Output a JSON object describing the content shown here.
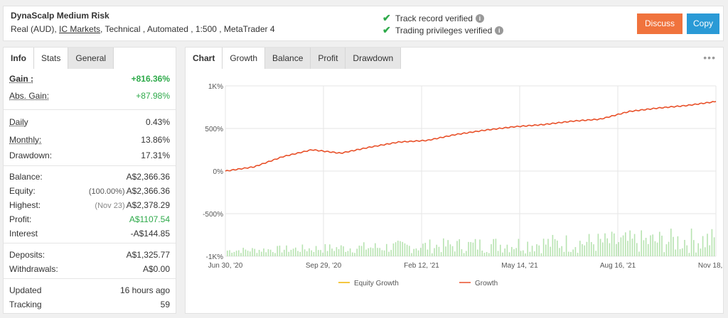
{
  "header": {
    "system_name": "DynaScalp Medium Risk",
    "info_prefix": "Real (AUD),",
    "broker": "IC Markets",
    "info_suffix": ", Technical , Automated , 1:500 , MetaTrader 4",
    "track_record": "Track record verified",
    "trading_privileges": "Trading privileges verified",
    "discuss_label": "Discuss",
    "copy_label": "Copy",
    "colors": {
      "discuss": "#f0733d",
      "copy": "#2a9ad6",
      "verified": "#2eaa4a"
    }
  },
  "left_panel": {
    "tabs": [
      "Info",
      "Stats",
      "General"
    ],
    "active_tab": "Stats",
    "gain_label": "Gain :",
    "gain_value": "+816.36%",
    "abs_gain_label": "Abs. Gain:",
    "abs_gain_value": "+87.98%",
    "daily_label": "Daily",
    "daily_value": "0.43%",
    "monthly_label": "Monthly:",
    "monthly_value": "13.86%",
    "drawdown_label": "Drawdown:",
    "drawdown_value": "17.31%",
    "balance_label": "Balance:",
    "balance_value": "A$2,366.36",
    "equity_label": "Equity:",
    "equity_note": "(100.00%)",
    "equity_value": "A$2,366.36",
    "highest_label": "Highest:",
    "highest_note": "(Nov 23)",
    "highest_value": "A$2,378.29",
    "profit_label": "Profit:",
    "profit_value": "A$1107.54",
    "interest_label": "Interest",
    "interest_value": "-A$144.85",
    "deposits_label": "Deposits:",
    "deposits_value": "A$1,325.77",
    "withdrawals_label": "Withdrawals:",
    "withdrawals_value": "A$0.00",
    "updated_label": "Updated",
    "updated_value": "16 hours ago",
    "tracking_label": "Tracking",
    "tracking_value": "59"
  },
  "chart_panel": {
    "label": "Chart",
    "tabs": [
      "Growth",
      "Balance",
      "Profit",
      "Drawdown"
    ],
    "active_tab": "Growth",
    "menu_icon": "ellipsis-icon"
  },
  "chart_data": {
    "type": "line",
    "title": "",
    "xlabel": "",
    "ylabel": "",
    "y_tick_labels": [
      "1K%",
      "500%",
      "0%",
      "-500%",
      "-1K%"
    ],
    "y_ticks": [
      1000,
      500,
      0,
      -500,
      -1000
    ],
    "ylim": [
      -1000,
      1000
    ],
    "x_tick_labels": [
      "Jun 30, '20",
      "Sep 29, '20",
      "Feb 12, '21",
      "May 14, '21",
      "Aug 16, '21",
      "Nov 18, '21"
    ],
    "grid": true,
    "legend": "bottom-center",
    "series": [
      {
        "name": "Equity Growth",
        "color": "#f0b400",
        "x": [
          "Jun 30, '20",
          "Jul 30, '20",
          "Aug 30, '20",
          "Sep 29, '20",
          "Oct 30, '20",
          "Dec 1, '20",
          "Jan 5, '21",
          "Feb 12, '21",
          "Mar 15, '21",
          "Apr 14, '21",
          "May 14, '21",
          "Jun 15, '21",
          "Jul 15, '21",
          "Aug 16, '21",
          "Sep 16, '21",
          "Oct 18, '21",
          "Nov 18, '21",
          "Nov 23, '21"
        ],
        "values": [
          0,
          50,
          170,
          250,
          210,
          280,
          340,
          360,
          430,
          480,
          520,
          545,
          585,
          610,
          700,
          740,
          770,
          816
        ]
      },
      {
        "name": "Growth",
        "color": "#e8502a",
        "x": [
          "Jun 30, '20",
          "Jul 30, '20",
          "Aug 30, '20",
          "Sep 29, '20",
          "Oct 30, '20",
          "Dec 1, '20",
          "Jan 5, '21",
          "Feb 12, '21",
          "Mar 15, '21",
          "Apr 14, '21",
          "May 14, '21",
          "Jun 15, '21",
          "Jul 15, '21",
          "Aug 16, '21",
          "Sep 16, '21",
          "Oct 18, '21",
          "Nov 18, '21",
          "Nov 23, '21"
        ],
        "values": [
          0,
          50,
          170,
          250,
          210,
          280,
          340,
          360,
          430,
          480,
          520,
          545,
          585,
          610,
          700,
          740,
          770,
          816
        ]
      }
    ],
    "volume_bars_color": "#b7e3b0"
  }
}
